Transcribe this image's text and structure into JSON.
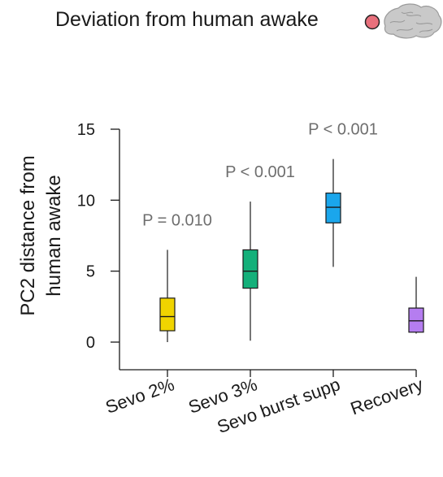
{
  "header": {
    "title": "Deviation from human awake",
    "marker_color": "#e8707c",
    "icon": "brain-icon"
  },
  "chart_data": {
    "type": "box",
    "title": "Deviation from human awake",
    "xlabel": "",
    "ylabel_lines": [
      "PC2 distance from",
      "human awake"
    ],
    "ylim": [
      0,
      15
    ],
    "yticks": [
      0,
      5,
      10,
      15
    ],
    "categories": [
      "Sevo 2%",
      "Sevo 3%",
      "Sevo burst supp",
      "Recovery"
    ],
    "boxes": [
      {
        "min": 0.0,
        "q1": 0.8,
        "median": 1.8,
        "q3": 3.1,
        "max": 6.5,
        "color": "#f0d400"
      },
      {
        "min": 0.1,
        "q1": 3.8,
        "median": 5.0,
        "q3": 6.5,
        "max": 9.9,
        "color": "#14b07a"
      },
      {
        "min": 5.3,
        "q1": 8.4,
        "median": 9.5,
        "q3": 10.5,
        "max": 12.9,
        "color": "#1aa6ec"
      },
      {
        "min": 0.6,
        "q1": 0.7,
        "median": 1.5,
        "q3": 2.4,
        "max": 4.6,
        "color": "#b57df0"
      }
    ],
    "annotations": [
      {
        "category": "Sevo 2%",
        "text": "P = 0.010"
      },
      {
        "category": "Sevo 3%",
        "text": "P < 0.001"
      },
      {
        "category": "Sevo burst supp",
        "text": "P < 0.001"
      }
    ],
    "grid": false,
    "legend": "none"
  }
}
